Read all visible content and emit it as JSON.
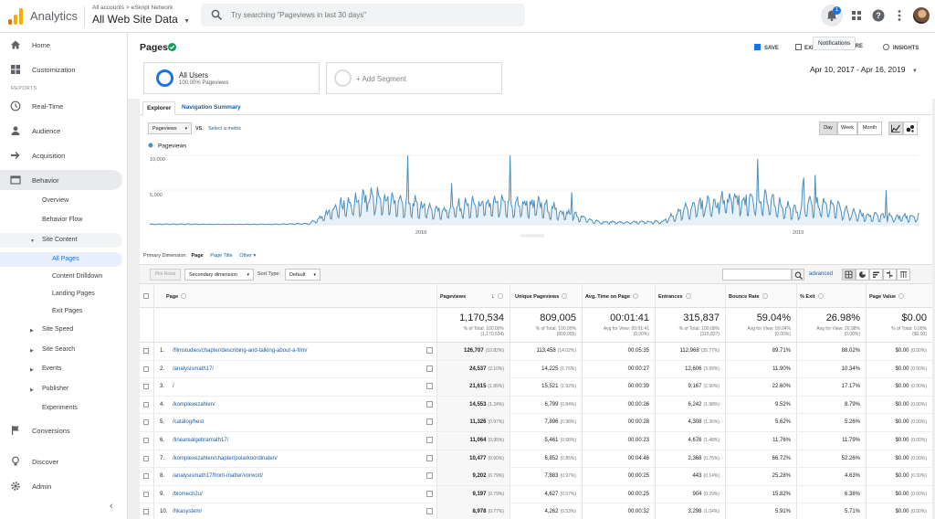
{
  "header": {
    "app_name": "Analytics",
    "breadcrumb": "All accounts > eSkript Network",
    "property": "All Web Site Data",
    "search_placeholder": "Try searching \"Pageviews in last 30 days\"",
    "notification_count": "1",
    "notifications_tooltip": "Notifications"
  },
  "colors": {
    "accent": "#1a73e8",
    "logo_orange": "#f9ab00",
    "logo_dark": "#e37400",
    "series": "#4a90c2"
  },
  "sidebar": {
    "home": "Home",
    "customization": "Customization",
    "reports_heading": "REPORTS",
    "realtime": "Real-Time",
    "audience": "Audience",
    "acquisition": "Acquisition",
    "behavior": "Behavior",
    "overview": "Overview",
    "behavior_flow": "Behavior Flow",
    "site_content": "Site Content",
    "all_pages": "All Pages",
    "content_drilldown": "Content Drilldown",
    "landing_pages": "Landing Pages",
    "exit_pages": "Exit Pages",
    "site_speed": "Site Speed",
    "site_search": "Site Search",
    "events": "Events",
    "publisher": "Publisher",
    "experiments": "Experiments",
    "conversions": "Conversions",
    "discover": "Discover",
    "admin": "Admin"
  },
  "page": {
    "title": "Pages",
    "actions": {
      "save": "SAVE",
      "export": "EXPORT",
      "share": "SHARE",
      "insights": "INSIGHTS"
    },
    "segments": {
      "all_users": "All Users",
      "all_users_sub": "100.00% Pageviews",
      "add_segment": "+ Add Segment"
    },
    "date_range": "Apr 10, 2017 - Apr 16, 2019"
  },
  "explorer": {
    "tabs": [
      "Explorer",
      "Navigation Summary"
    ],
    "metric_select": "Pageviews",
    "vs_label": "VS.",
    "select_metric": "Select a metric",
    "granularity": [
      "Day",
      "Week",
      "Month"
    ],
    "legend": "Pageviews",
    "y_ticks": [
      "10,000",
      "5,000"
    ],
    "x_ticks": [
      "2018",
      "2019"
    ]
  },
  "chart_data": {
    "type": "line",
    "series": [
      {
        "name": "Pageviews"
      }
    ],
    "x_range": [
      "2017-04-10",
      "2019-04-16"
    ],
    "x": [
      "2017-04",
      "2017-05",
      "2017-06",
      "2017-07",
      "2017-08",
      "2017-09",
      "2017-10",
      "2017-11",
      "2017-12",
      "2018-01",
      "2018-02",
      "2018-03",
      "2018-04",
      "2018-05",
      "2018-06",
      "2018-07",
      "2018-08",
      "2018-09",
      "2018-10",
      "2018-11",
      "2018-12",
      "2019-01",
      "2019-02",
      "2019-03",
      "2019-04"
    ],
    "values": [
      80,
      90,
      70,
      60,
      80,
      160,
      2600,
      3500,
      2800,
      1900,
      2500,
      2600,
      2700,
      1500,
      350,
      320,
      400,
      2500,
      3200,
      3300,
      2000,
      2700,
      1400,
      1000,
      1050
    ],
    "ylim": [
      0,
      10000
    ],
    "yticks": [
      5000,
      10000
    ],
    "grid": true,
    "legend": "top-left"
  },
  "table": {
    "primary_dimension_label": "Primary Dimension:",
    "primary_dimension": "Page",
    "dim_options": [
      "Page Title",
      "Other"
    ],
    "plot_rows": "Plot Rows",
    "secondary_dimension": "Secondary dimension",
    "sort_type_label": "Sort Type:",
    "sort_type": "Default",
    "advanced": "advanced",
    "columns": [
      "Page",
      "Pageviews",
      "Unique Pageviews",
      "Avg. Time on Page",
      "Entrances",
      "Bounce Rate",
      "% Exit",
      "Page Value"
    ],
    "totals": [
      {
        "big": "1,170,534",
        "sub1": "% of Total: 100.00%",
        "sub2": "(1,170,534)"
      },
      {
        "big": "809,005",
        "sub1": "% of Total: 100.00%",
        "sub2": "(809,005)"
      },
      {
        "big": "00:01:41",
        "sub1": "Avg for View: 00:01:41",
        "sub2": "(0.00%)"
      },
      {
        "big": "315,837",
        "sub1": "% of Total: 100.00%",
        "sub2": "(315,837)"
      },
      {
        "big": "59.04%",
        "sub1": "Avg for View: 59.04%",
        "sub2": "(0.00%)"
      },
      {
        "big": "26.98%",
        "sub1": "Avg for View: 26.98%",
        "sub2": "(0.00%)"
      },
      {
        "big": "$0.00",
        "sub1": "% of Total: 0.00%",
        "sub2": "($0.00)"
      }
    ],
    "rows": [
      {
        "n": "1.",
        "page": "/filmstudies/chapter/describing-and-talking-about-a-film/",
        "pv": "126,707",
        "pvp": "(10.82%)",
        "upv": "113,458",
        "upvp": "(14.02%)",
        "time": "00:05:35",
        "ent": "112,968",
        "entp": "(35.77%)",
        "bounce": "89.71%",
        "exit": "88.02%",
        "value": "$0.00",
        "valp": "(0.00%)"
      },
      {
        "n": "2.",
        "page": "/analysismath17/",
        "pv": "24,537",
        "pvp": "(2.10%)",
        "upv": "14,225",
        "upvp": "(1.76%)",
        "time": "00:00:27",
        "ent": "12,606",
        "entp": "(3.99%)",
        "bounce": "11.90%",
        "exit": "10.34%",
        "value": "$0.00",
        "valp": "(0.00%)"
      },
      {
        "n": "3.",
        "page": "/",
        "pv": "21,615",
        "pvp": "(1.85%)",
        "upv": "15,521",
        "upvp": "(1.92%)",
        "time": "00:00:39",
        "ent": "9,167",
        "entp": "(2.90%)",
        "bounce": "22.60%",
        "exit": "17.17%",
        "value": "$0.00",
        "valp": "(0.00%)"
      },
      {
        "n": "4.",
        "page": "/komplexezahlen/",
        "pv": "14,553",
        "pvp": "(1.24%)",
        "upv": "6,799",
        "upvp": "(0.84%)",
        "time": "00:00:26",
        "ent": "6,242",
        "entp": "(1.98%)",
        "bounce": "9.52%",
        "exit": "8.79%",
        "value": "$0.00",
        "valp": "(0.00%)"
      },
      {
        "n": "5.",
        "page": "/catalog/hest",
        "pv": "11,326",
        "pvp": "(0.97%)",
        "upv": "7,896",
        "upvp": "(0.98%)",
        "time": "00:00:28",
        "ent": "4,308",
        "entp": "(1.36%)",
        "bounce": "5.62%",
        "exit": "5.26%",
        "value": "$0.00",
        "valp": "(0.00%)"
      },
      {
        "n": "6.",
        "page": "/linearealgebramath17/",
        "pv": "11,064",
        "pvp": "(0.95%)",
        "upv": "5,461",
        "upvp": "(0.68%)",
        "time": "00:00:23",
        "ent": "4,676",
        "entp": "(1.48%)",
        "bounce": "11.76%",
        "exit": "11.79%",
        "value": "$0.00",
        "valp": "(0.00%)"
      },
      {
        "n": "7.",
        "page": "/komplexezahlen/chapter/polarkoordinaten/",
        "pv": "10,477",
        "pvp": "(0.90%)",
        "upv": "6,852",
        "upvp": "(0.85%)",
        "time": "00:04:46",
        "ent": "2,368",
        "entp": "(0.75%)",
        "bounce": "66.72%",
        "exit": "52.26%",
        "value": "$0.00",
        "valp": "(0.00%)"
      },
      {
        "n": "8.",
        "page": "/analysismath17/front-matter/vorwort/",
        "pv": "9,202",
        "pvp": "(0.79%)",
        "upv": "7,883",
        "upvp": "(0.97%)",
        "time": "00:00:25",
        "ent": "443",
        "entp": "(0.14%)",
        "bounce": "25.28%",
        "exit": "4.63%",
        "value": "$0.00",
        "valp": "(0.00%)"
      },
      {
        "n": "9.",
        "page": "/biomech2u/",
        "pv": "9,197",
        "pvp": "(0.79%)",
        "upv": "4,627",
        "upvp": "(0.57%)",
        "time": "00:00:25",
        "ent": "904",
        "entp": "(0.29%)",
        "bounce": "15.82%",
        "exit": "6.38%",
        "value": "$0.00",
        "valp": "(0.00%)"
      },
      {
        "n": "10.",
        "page": "/hkasystem/",
        "pv": "8,978",
        "pvp": "(0.77%)",
        "upv": "4,262",
        "upvp": "(0.53%)",
        "time": "00:00:32",
        "ent": "3,298",
        "entp": "(1.04%)",
        "bounce": "5.91%",
        "exit": "5.71%",
        "value": "$0.00",
        "valp": "(0.00%)"
      }
    ]
  }
}
